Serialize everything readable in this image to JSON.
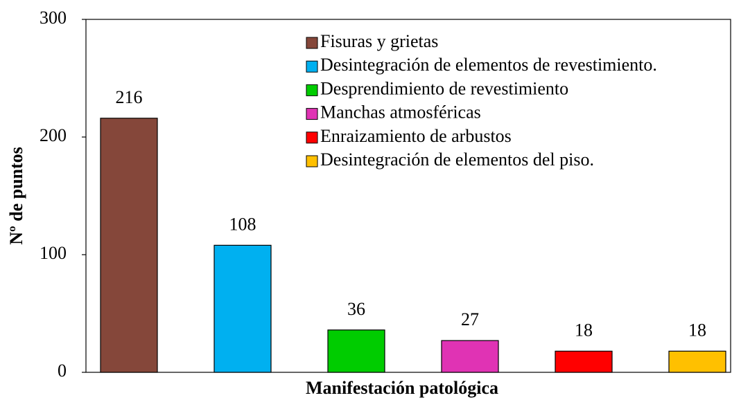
{
  "chart_data": {
    "type": "bar",
    "xlabel": "Manifestación patológica",
    "ylabel": "Nº de puntos",
    "categories": [
      "Fisuras y grietas",
      "Desintegración de elementos de revestimiento.",
      "Desprendimiento de revestimiento",
      "Manchas atmosféricas",
      "Enraizamiento de arbustos",
      "Desintegración de elementos del piso."
    ],
    "values": [
      216,
      108,
      36,
      27,
      18,
      18
    ],
    "colors": [
      "#85473a",
      "#00b0f0",
      "#00cc00",
      "#e033b4",
      "#ff0000",
      "#ffc000"
    ],
    "ylim": [
      0,
      300
    ],
    "yticks": [
      0,
      100,
      200,
      300
    ],
    "legend": "top-right"
  }
}
